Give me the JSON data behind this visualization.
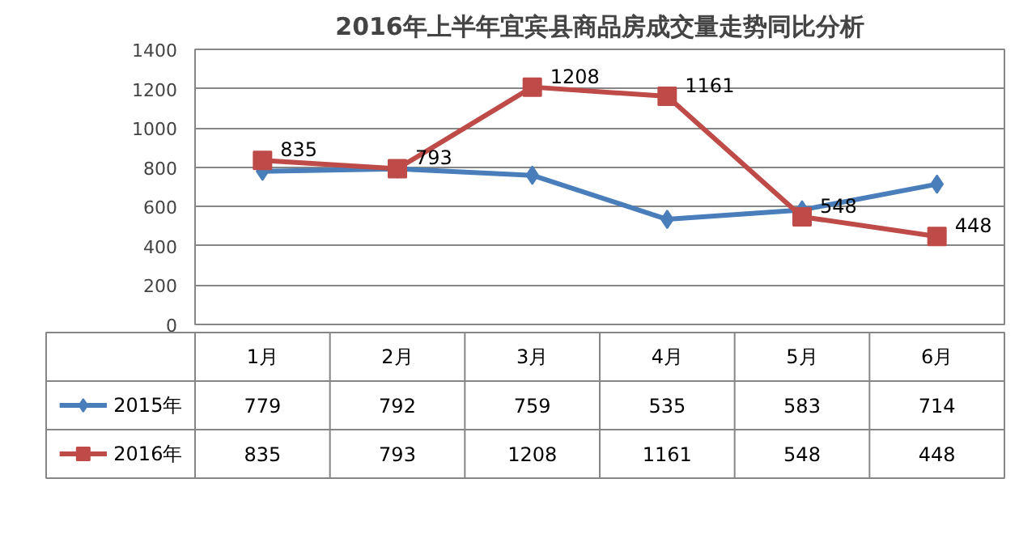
{
  "chart_data": {
    "type": "line",
    "title": "2016年上半年宜宾县商品房成交量走势同比分析",
    "categories": [
      "1月",
      "2月",
      "3月",
      "4月",
      "5月",
      "6月"
    ],
    "series": [
      {
        "name": "2015年",
        "color": "#4a7ebb",
        "marker": "diamond",
        "values": [
          779,
          792,
          759,
          535,
          583,
          714
        ]
      },
      {
        "name": "2016年",
        "color": "#be4b48",
        "marker": "square",
        "values": [
          835,
          793,
          1208,
          1161,
          548,
          448
        ]
      }
    ],
    "annotations": [
      {
        "text": "835",
        "x": "1月",
        "y": 835
      },
      {
        "text": "793",
        "x": "2月",
        "y": 793
      },
      {
        "text": "1208",
        "x": "3月",
        "y": 1208
      },
      {
        "text": "1161",
        "x": "4月",
        "y": 1161
      },
      {
        "text": "548",
        "x": "5月",
        "y": 548
      },
      {
        "text": "448",
        "x": "6月",
        "y": 448
      }
    ],
    "ylim": [
      0,
      1400
    ],
    "yticks": [
      0,
      200,
      400,
      600,
      800,
      1000,
      1200,
      1400
    ],
    "grid": "y",
    "legend": "bottom",
    "data_labels": true
  }
}
